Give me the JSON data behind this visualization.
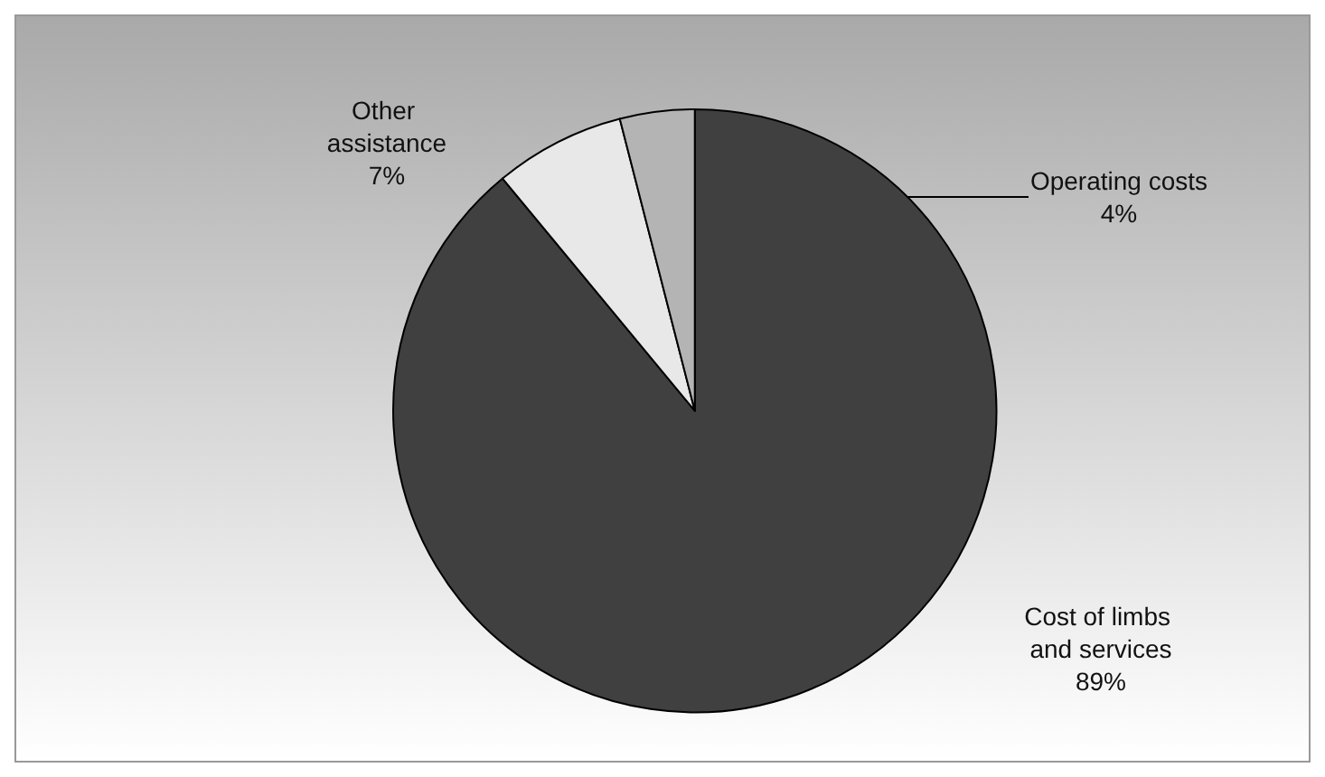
{
  "chart_data": {
    "type": "pie",
    "categories": [
      "Cost of limbs and services",
      "Other assistance",
      "Operating costs"
    ],
    "values": [
      89,
      7,
      4
    ],
    "colors": [
      "#404040",
      "#e8e8e8",
      "#b4b4b4"
    ],
    "value_labels": [
      "89%",
      "7%",
      "4%"
    ],
    "legend": false
  }
}
